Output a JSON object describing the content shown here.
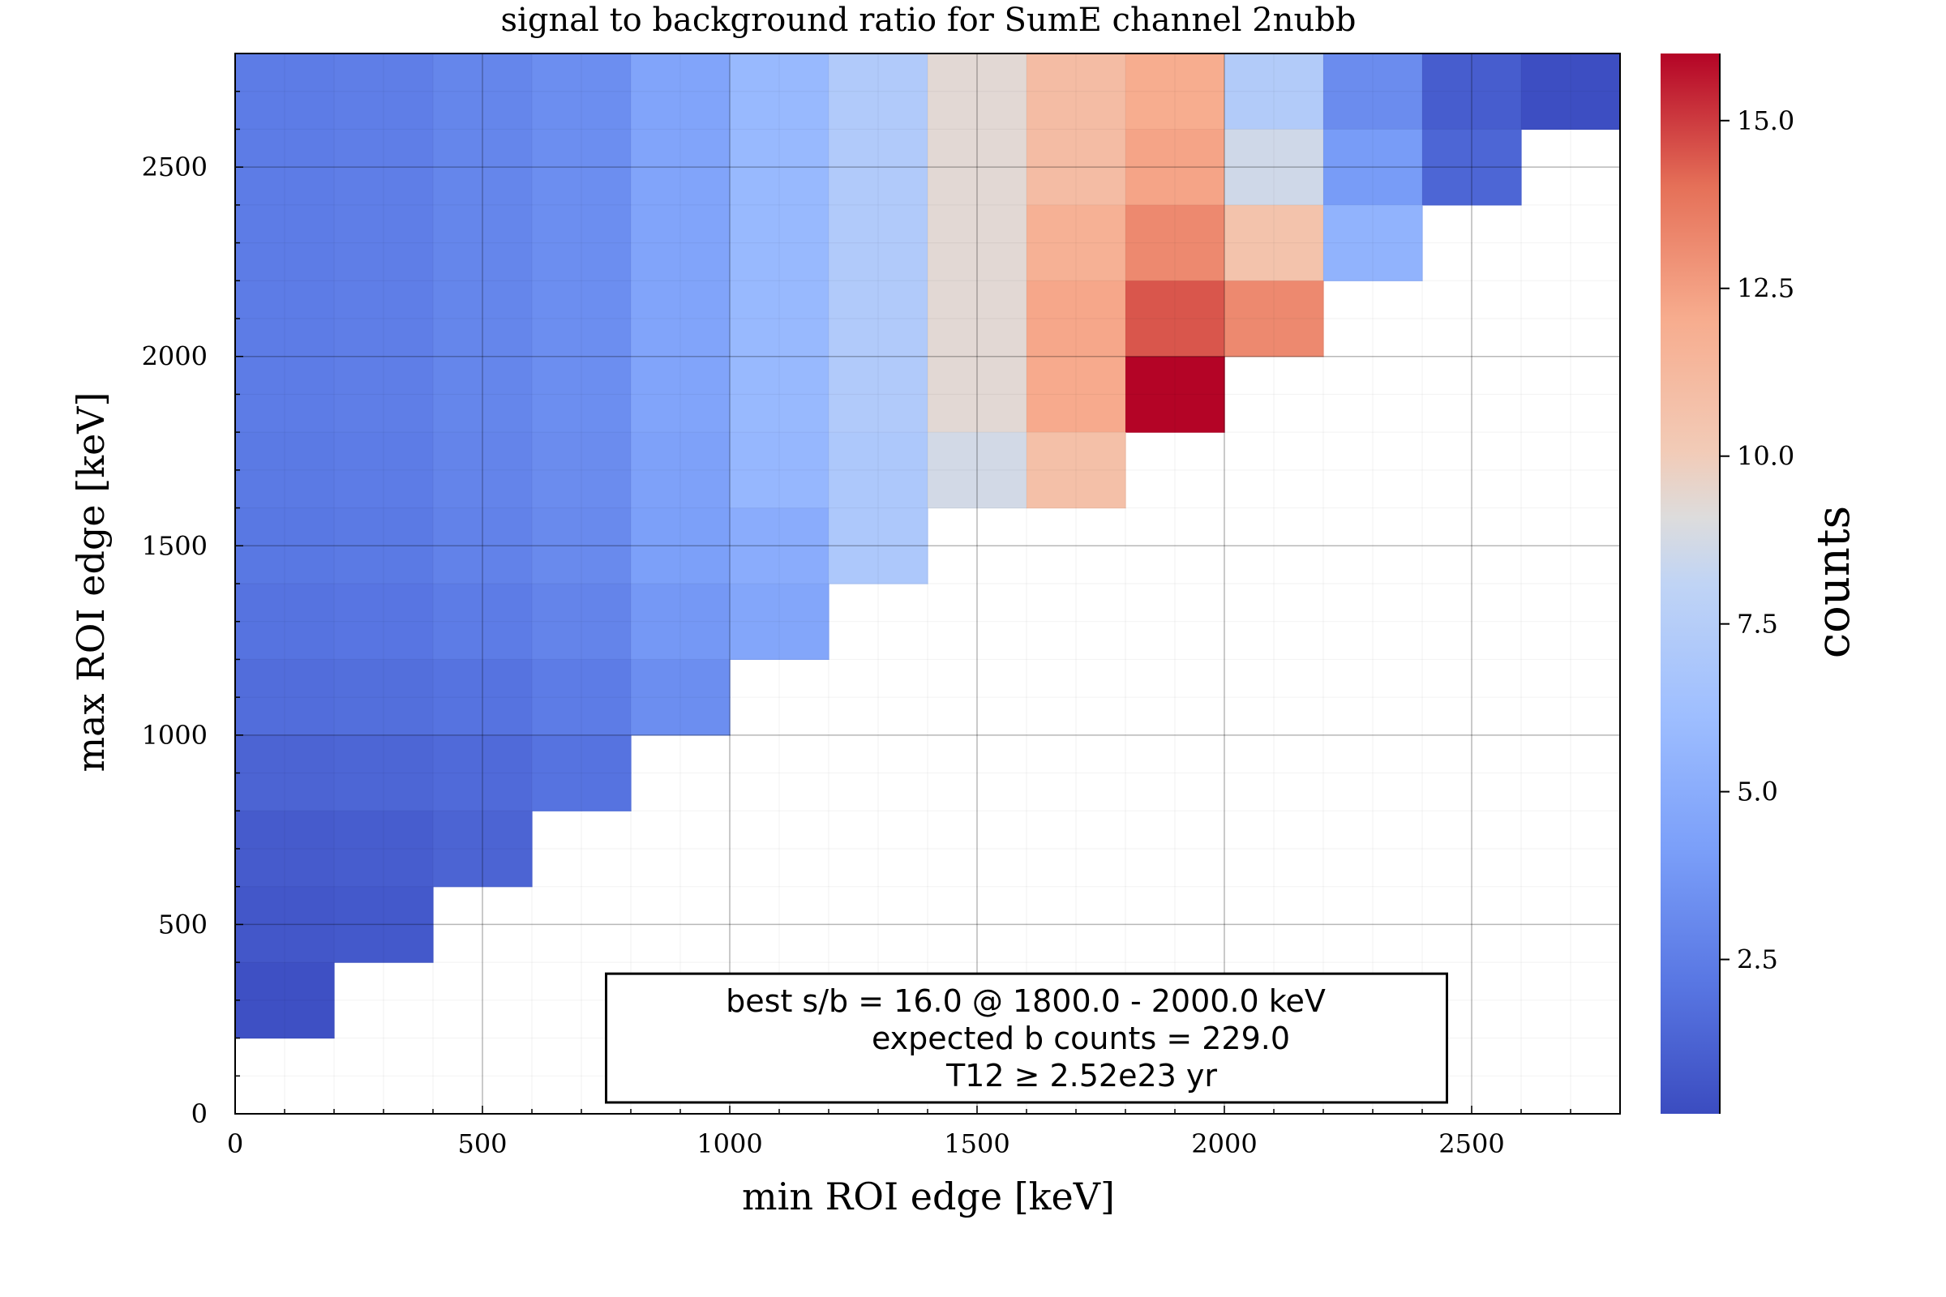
{
  "chart_data": {
    "type": "heatmap",
    "title": "signal to background ratio for SumE channel 2nubb",
    "xlabel": "min ROI edge [keV]",
    "ylabel": "max ROI edge [keV]",
    "xlim": [
      0,
      2800
    ],
    "ylim": [
      0,
      2800
    ],
    "x_ticks": [
      0,
      500,
      1000,
      1500,
      2000,
      2500
    ],
    "y_ticks": [
      0,
      500,
      1000,
      1500,
      2000,
      2500
    ],
    "bin_width": 200,
    "grid": true,
    "colorbar": {
      "label": "counts",
      "range": [
        0.2,
        16.0
      ],
      "ticks": [
        "2.5",
        "5.0",
        "7.5",
        "10.0",
        "12.5",
        "15.0"
      ],
      "tick_values": [
        2.5,
        5.0,
        7.5,
        10.0,
        12.5,
        15.0
      ],
      "colormap": "coolwarm",
      "low_color": "#3b4cc0",
      "high_color": "#b40426"
    },
    "y_bins": [
      2600,
      2400,
      2200,
      2000,
      1800,
      1600,
      1400,
      1200,
      1000,
      800,
      600,
      400,
      200
    ],
    "x_bins": [
      0,
      200,
      400,
      600,
      800,
      1000,
      1200,
      1400,
      1600,
      1800,
      2000,
      2200,
      2400,
      2600
    ],
    "rows": [
      [
        2.4,
        2.5,
        2.9,
        3.3,
        4.5,
        5.8,
        7.2,
        9.3,
        11.0,
        12.0,
        7.3,
        3.2,
        1.0,
        0.3
      ],
      [
        2.4,
        2.5,
        2.9,
        3.3,
        4.5,
        5.8,
        7.2,
        9.3,
        11.0,
        12.3,
        8.6,
        4.0,
        1.4,
        null
      ],
      [
        2.4,
        2.5,
        2.9,
        3.3,
        4.5,
        5.8,
        7.2,
        9.3,
        11.7,
        13.2,
        10.6,
        5.4,
        null,
        null
      ],
      [
        2.4,
        2.5,
        2.9,
        3.3,
        4.5,
        5.8,
        7.2,
        9.3,
        12.2,
        14.5,
        13.2,
        null,
        null,
        null
      ],
      [
        2.4,
        2.5,
        2.9,
        3.3,
        4.5,
        5.8,
        7.2,
        9.3,
        12.1,
        16.0,
        null,
        null,
        null,
        null
      ],
      [
        2.3,
        2.4,
        2.8,
        3.2,
        4.3,
        5.7,
        7.0,
        8.7,
        10.8,
        null,
        null,
        null,
        null,
        null
      ],
      [
        2.2,
        2.3,
        2.7,
        3.1,
        4.2,
        5.0,
        7.0,
        null,
        null,
        null,
        null,
        null,
        null,
        null
      ],
      [
        2.0,
        2.1,
        2.4,
        2.8,
        3.8,
        4.6,
        null,
        null,
        null,
        null,
        null,
        null,
        null,
        null
      ],
      [
        1.7,
        1.8,
        2.0,
        2.4,
        3.3,
        null,
        null,
        null,
        null,
        null,
        null,
        null,
        null,
        null
      ],
      [
        1.3,
        1.4,
        1.6,
        2.0,
        null,
        null,
        null,
        null,
        null,
        null,
        null,
        null,
        null,
        null
      ],
      [
        0.9,
        1.0,
        1.3,
        null,
        null,
        null,
        null,
        null,
        null,
        null,
        null,
        null,
        null,
        null
      ],
      [
        0.7,
        0.8,
        null,
        null,
        null,
        null,
        null,
        null,
        null,
        null,
        null,
        null,
        null,
        null
      ],
      [
        0.4,
        null,
        null,
        null,
        null,
        null,
        null,
        null,
        null,
        null,
        null,
        null,
        null,
        null
      ]
    ],
    "annotation": {
      "lines": [
        "best s/b = 16.0 @ 1800.0 - 2000.0 keV",
        "expected b counts = 229.0",
        "T12 ≥  2.52e23 yr"
      ]
    }
  }
}
